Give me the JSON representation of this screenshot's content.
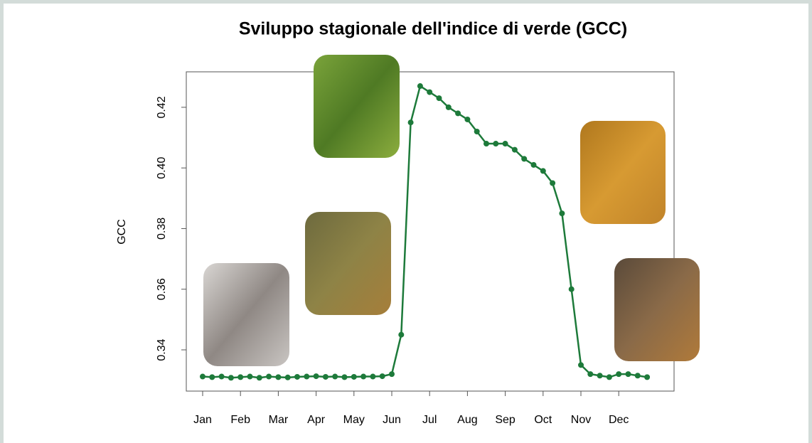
{
  "chart_data": {
    "type": "line",
    "title": "Sviluppo stagionale dell'indice di verde (GCC)",
    "y_label": "GCC",
    "categories": [
      "Jan",
      null,
      null,
      null,
      "Feb",
      null,
      null,
      null,
      "Mar",
      null,
      null,
      null,
      "Apr",
      null,
      null,
      null,
      "May",
      null,
      null,
      null,
      "Jun",
      null,
      null,
      null,
      "Jul",
      null,
      null,
      null,
      "Aug",
      null,
      null,
      null,
      "Sep",
      null,
      null,
      null,
      "Oct",
      null,
      null,
      null,
      "Nov",
      null,
      null,
      null,
      "Dec",
      null,
      null,
      null
    ],
    "values": [
      0.3312,
      0.331,
      0.3312,
      0.3308,
      0.331,
      0.3312,
      0.3308,
      0.3312,
      0.331,
      0.3309,
      0.3311,
      0.3312,
      0.3313,
      0.3311,
      0.3312,
      0.331,
      0.3311,
      0.3312,
      0.3312,
      0.3313,
      0.332,
      0.345,
      0.415,
      0.427,
      0.425,
      0.423,
      0.42,
      0.418,
      0.416,
      0.412,
      0.408,
      0.408,
      0.408,
      0.406,
      0.403,
      0.401,
      0.399,
      0.395,
      0.385,
      0.36,
      0.335,
      0.332,
      0.3315,
      0.331,
      0.332,
      0.332,
      0.3315,
      0.331
    ],
    "color": "#1d7a3a",
    "ylim": [
      0.3264,
      0.4317
    ],
    "yticks": [
      0.34,
      0.36,
      0.38,
      {
        "value": 0.4,
        "label": "0.40"
      },
      0.42
    ]
  }
}
